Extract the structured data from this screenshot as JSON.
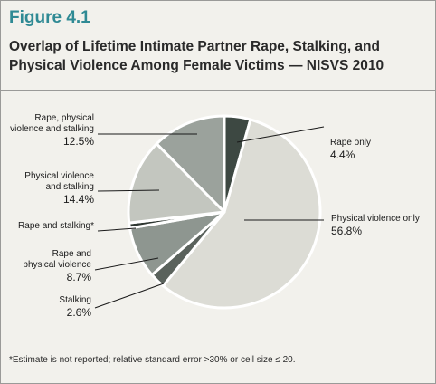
{
  "figure_label": "Figure 4.1",
  "chart_data": {
    "type": "pie",
    "title_line1": "Overlap of Lifetime Intimate Partner Rape, Stalking, and",
    "title_line2": "Physical Violence Among Female Victims — NISVS 2010",
    "slices": [
      {
        "name": "Rape only",
        "label_lines": [
          "Rape only"
        ],
        "value": 4.4,
        "value_text": "4.4%",
        "color": "#3d4842"
      },
      {
        "name": "Physical violence only",
        "label_lines": [
          "Physical violence only"
        ],
        "value": 56.8,
        "value_text": "56.8%",
        "color": "#dcdcd5"
      },
      {
        "name": "Stalking",
        "label_lines": [
          "Stalking"
        ],
        "value": 2.6,
        "value_text": "2.6%",
        "color": "#5a625c"
      },
      {
        "name": "Rape and physical violence",
        "label_lines": [
          "Rape and",
          "physical violence"
        ],
        "value": 8.7,
        "value_text": "8.7%",
        "color": "#8e9690"
      },
      {
        "name": "Rape and stalking",
        "label_lines": [
          "Rape and stalking*"
        ],
        "value": 0.9,
        "value_text": "",
        "color": "#2e3631"
      },
      {
        "name": "Physical violence and stalking",
        "label_lines": [
          "Physical violence",
          "and stalking"
        ],
        "value": 14.4,
        "value_text": "14.4%",
        "color": "#c3c6bf"
      },
      {
        "name": "Rape, physical violence and stalking",
        "label_lines": [
          "Rape, physical",
          "violence and stalking"
        ],
        "value": 12.5,
        "value_text": "12.5%",
        "color": "#9ba29c"
      }
    ]
  },
  "footnote": "*Estimate is not reported; relative standard error >30% or cell size ≤ 20."
}
